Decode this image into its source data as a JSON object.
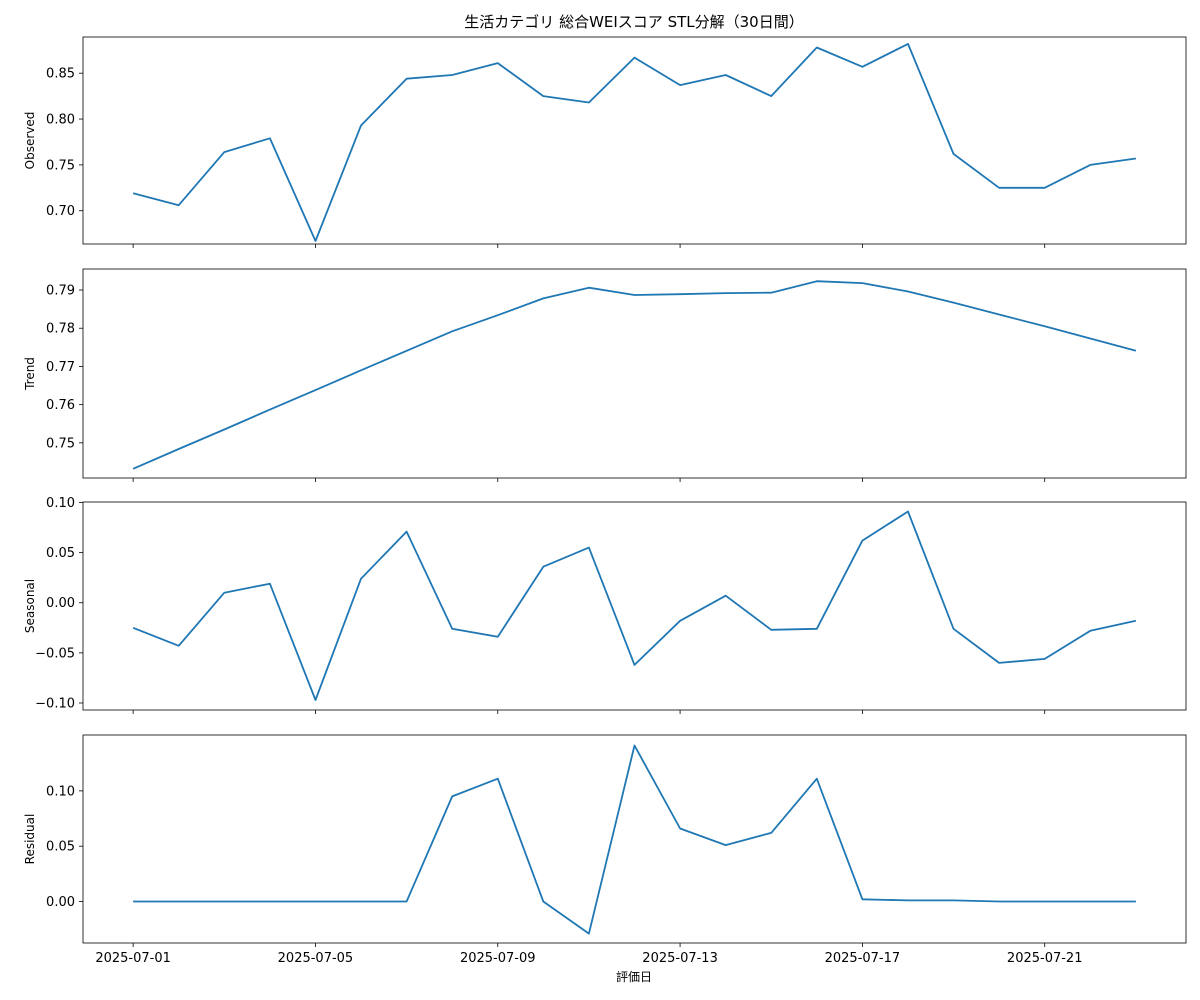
{
  "figure": {
    "title": "生活カテゴリ 総合WEIスコア STL分解（30日間）",
    "xlabel": "評価日"
  },
  "chart_data": {
    "type": "line",
    "title": "生活カテゴリ 総合WEIスコア STL分解（30日間）",
    "xlabel": "評価日",
    "x": [
      "2025-07-01",
      "2025-07-02",
      "2025-07-03",
      "2025-07-04",
      "2025-07-05",
      "2025-07-06",
      "2025-07-07",
      "2025-07-08",
      "2025-07-09",
      "2025-07-10",
      "2025-07-11",
      "2025-07-12",
      "2025-07-13",
      "2025-07-14",
      "2025-07-15",
      "2025-07-16",
      "2025-07-17",
      "2025-07-18",
      "2025-07-19",
      "2025-07-20",
      "2025-07-21",
      "2025-07-22",
      "2025-07-23"
    ],
    "xticks": [
      "2025-07-01",
      "2025-07-05",
      "2025-07-09",
      "2025-07-13",
      "2025-07-17",
      "2025-07-21"
    ],
    "line_color": "#1f77b4",
    "grid": false,
    "panels": [
      {
        "ylabel": "Observed",
        "ylim": [
          0.6637,
          0.8895
        ],
        "yticks": [
          "0.70",
          "0.75",
          "0.80",
          "0.85"
        ],
        "yticks_values": [
          0.7,
          0.75,
          0.8,
          0.85
        ],
        "values": [
          0.719,
          0.706,
          0.764,
          0.779,
          0.667,
          0.793,
          0.844,
          0.848,
          0.861,
          0.825,
          0.818,
          0.867,
          0.837,
          0.848,
          0.825,
          0.878,
          0.857,
          0.882,
          0.762,
          0.725,
          0.725,
          0.75,
          0.757
        ]
      },
      {
        "ylabel": "Trend",
        "ylim": [
          0.7408,
          0.7955
        ],
        "yticks": [
          "0.75",
          "0.76",
          "0.77",
          "0.78",
          "0.79"
        ],
        "yticks_values": [
          0.75,
          0.76,
          0.77,
          0.78,
          0.79
        ],
        "values": [
          0.7432,
          0.7484,
          0.7535,
          0.7587,
          0.7638,
          0.769,
          0.7741,
          0.7792,
          0.7834,
          0.7878,
          0.7906,
          0.7887,
          0.7889,
          0.7892,
          0.7893,
          0.7923,
          0.7918,
          0.7896,
          0.7867,
          0.7836,
          0.7805,
          0.7773,
          0.7741
        ]
      },
      {
        "ylabel": "Seasonal",
        "ylim": [
          -0.107,
          0.1005
        ],
        "yticks": [
          "−0.10",
          "−0.05",
          "0.00",
          "0.05",
          "0.10"
        ],
        "yticks_values": [
          -0.1,
          -0.05,
          0.0,
          0.05,
          0.1
        ],
        "values": [
          -0.025,
          -0.043,
          0.01,
          0.019,
          -0.097,
          0.024,
          0.071,
          -0.026,
          -0.034,
          0.036,
          0.055,
          -0.062,
          -0.018,
          0.007,
          -0.027,
          -0.026,
          0.062,
          0.091,
          -0.026,
          -0.06,
          -0.056,
          -0.028,
          -0.018
        ]
      },
      {
        "ylabel": "Residual",
        "ylim": [
          -0.0375,
          0.1505
        ],
        "yticks": [
          "0.00",
          "0.05",
          "0.10"
        ],
        "yticks_values": [
          0.0,
          0.05,
          0.1
        ],
        "values": [
          0.0,
          0.0,
          0.0,
          0.0,
          0.0,
          0.0,
          0.0,
          0.095,
          0.111,
          0.0,
          -0.029,
          0.141,
          0.066,
          0.051,
          0.062,
          0.111,
          0.002,
          0.001,
          0.001,
          0.0,
          0.0,
          0.0,
          0.0
        ]
      }
    ]
  }
}
